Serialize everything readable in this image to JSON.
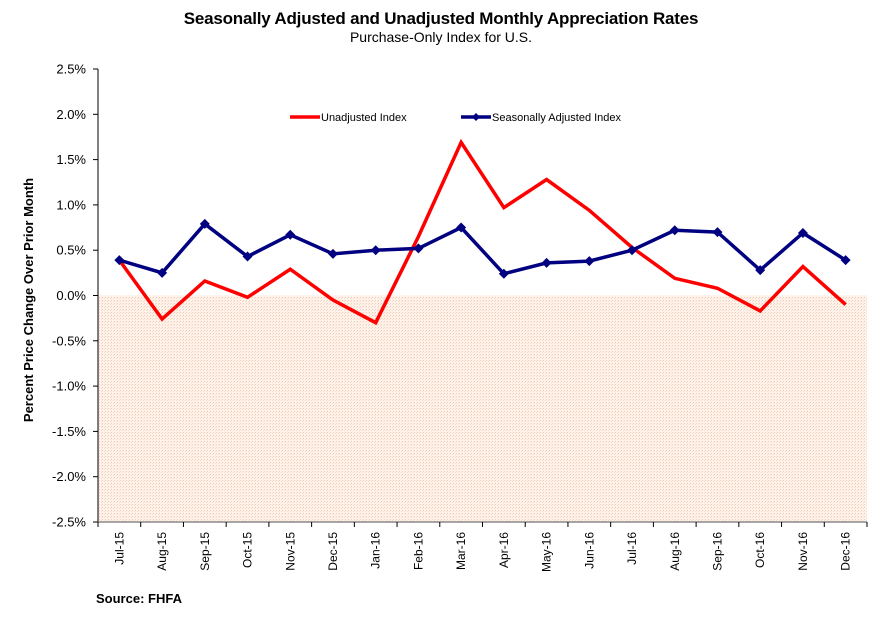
{
  "header": {
    "title": "Seasonally Adjusted and Unadjusted Monthly Appreciation Rates",
    "subtitle": "Purchase-Only Index for U.S."
  },
  "footer": {
    "source": "Source: FHFA"
  },
  "colors": {
    "unadjusted": "#ff0000",
    "seasonally_adjusted": "#000080",
    "negative_region_fill": "#fbe9dc"
  },
  "chart_data": {
    "type": "line",
    "title": "Seasonally Adjusted and Unadjusted Monthly Appreciation Rates",
    "subtitle": "Purchase-Only Index for U.S.",
    "xlabel": "",
    "ylabel": "Percent Price Change Over Prior Month",
    "ylim": [
      -2.5,
      2.5
    ],
    "y_tick_step": 0.5,
    "y_ticks": [
      "2.5%",
      "2.0%",
      "1.5%",
      "1.0%",
      "0.5%",
      "0.0%",
      "-0.5%",
      "-1.0%",
      "-1.5%",
      "-2.0%",
      "-2.5%"
    ],
    "y_tick_values": [
      2.5,
      2.0,
      1.5,
      1.0,
      0.5,
      0.0,
      -0.5,
      -1.0,
      -1.5,
      -2.0,
      -2.5
    ],
    "grid": false,
    "legend_position": "top-center",
    "shaded_region": {
      "from": -2.5,
      "to": 0.0,
      "description": "negative change area"
    },
    "categories": [
      "Jul-15",
      "Aug-15",
      "Sep-15",
      "Oct-15",
      "Nov-15",
      "Dec-15",
      "Jan-16",
      "Feb-16",
      "Mar-16",
      "Apr-16",
      "May-16",
      "Jun-16",
      "Jul-16",
      "Aug-16",
      "Sep-16",
      "Oct-16",
      "Nov-16",
      "Dec-16"
    ],
    "series": [
      {
        "name": "Unadjusted Index",
        "color": "#ff0000",
        "marker": "none",
        "values": [
          0.39,
          -0.26,
          0.16,
          -0.02,
          0.29,
          -0.05,
          -0.3,
          0.65,
          1.69,
          0.97,
          1.28,
          0.94,
          0.53,
          0.19,
          0.08,
          -0.17,
          0.32,
          -0.1
        ]
      },
      {
        "name": "Seasonally Adjusted Index",
        "color": "#000080",
        "marker": "diamond",
        "values": [
          0.39,
          0.25,
          0.79,
          0.43,
          0.67,
          0.46,
          0.5,
          0.52,
          0.75,
          0.24,
          0.36,
          0.38,
          0.5,
          0.72,
          0.7,
          0.28,
          0.69,
          0.39
        ]
      }
    ]
  }
}
